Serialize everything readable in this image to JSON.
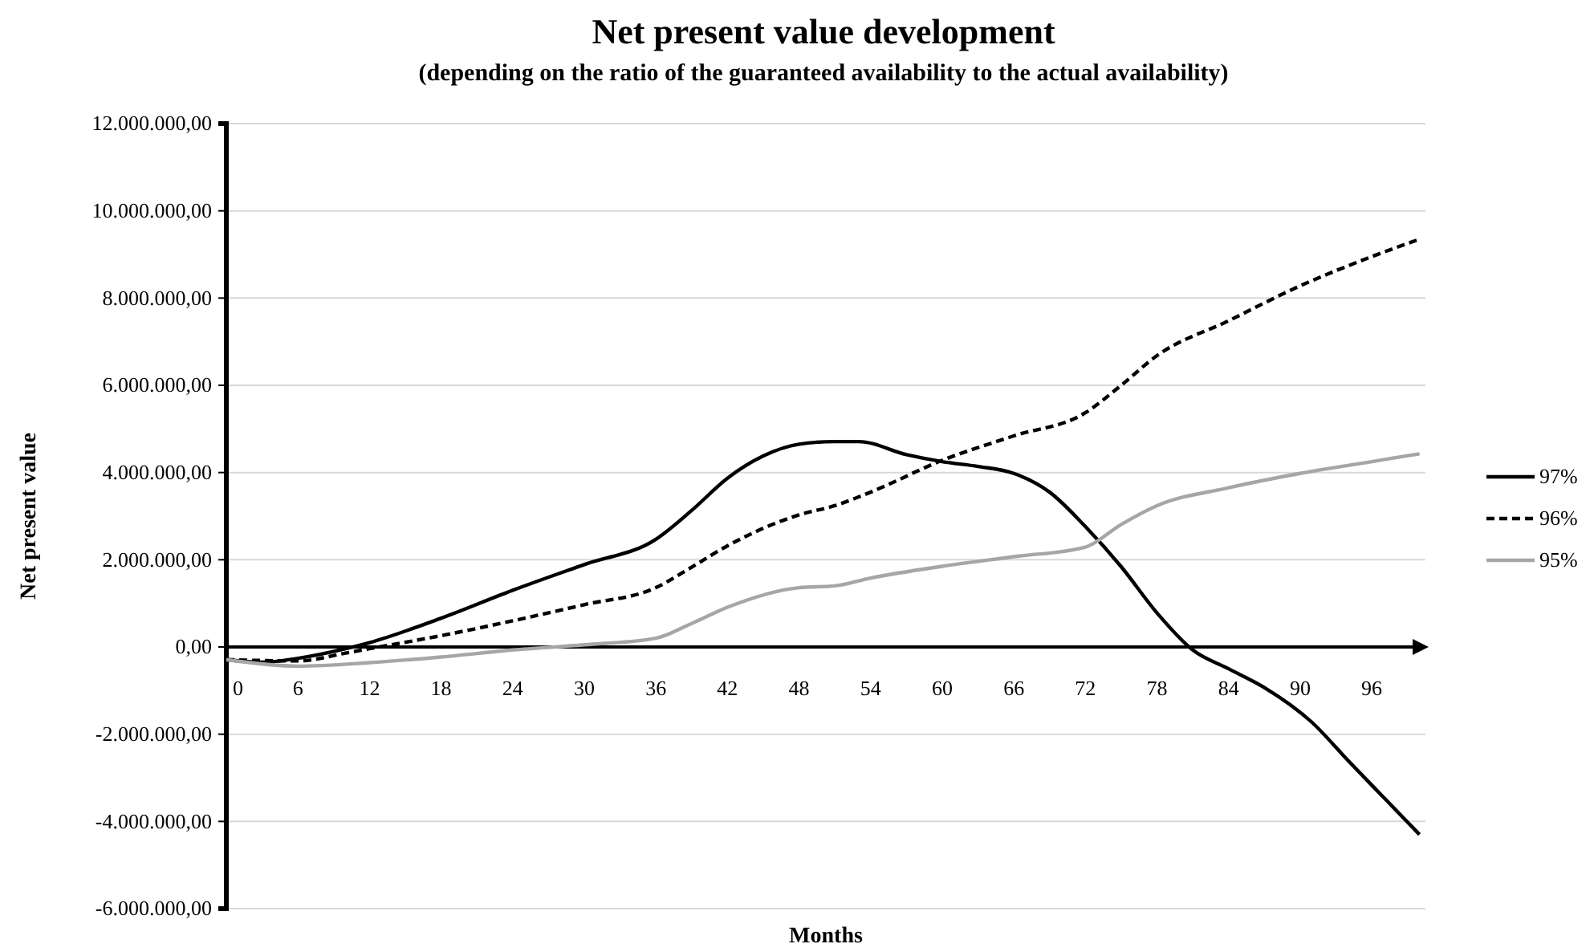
{
  "chart_data": {
    "type": "line",
    "title": "Net present value development",
    "subtitle": "(depending on the ratio of the guaranteed availability to the actual availability)",
    "xlabel": "Months",
    "ylabel": "Net present value",
    "xlim": [
      0,
      100.5
    ],
    "xticks": [
      0,
      6,
      12,
      18,
      24,
      30,
      36,
      42,
      48,
      54,
      60,
      66,
      72,
      78,
      84,
      90,
      96
    ],
    "ylim": [
      -6000000,
      12000000
    ],
    "yticks": [
      {
        "value": -6000000,
        "label": "-6.000.000,00"
      },
      {
        "value": -4000000,
        "label": "-4.000.000,00"
      },
      {
        "value": -2000000,
        "label": "-2.000.000,00"
      },
      {
        "value": 0,
        "label": "0,00"
      },
      {
        "value": 2000000,
        "label": "2.000.000,00"
      },
      {
        "value": 4000000,
        "label": "4.000.000,00"
      },
      {
        "value": 6000000,
        "label": "6.000.000,00"
      },
      {
        "value": 8000000,
        "label": "8.000.000,00"
      },
      {
        "value": 10000000,
        "label": "10.000.000,00"
      },
      {
        "value": 12000000,
        "label": "12.000.000,00"
      }
    ],
    "grid": "y",
    "legend": "right",
    "marker": "none",
    "series": [
      {
        "name": "97%",
        "color": "#000000",
        "line_style": "solid",
        "x": [
          0,
          3,
          6,
          10,
          12,
          18,
          24,
          30,
          36,
          39,
          42,
          45,
          48,
          51,
          53,
          57,
          60,
          63,
          66,
          69,
          72,
          75,
          78,
          81,
          84,
          87,
          91,
          94,
          97,
          100
        ],
        "values": [
          -290000,
          -350000,
          -260000,
          -40000,
          100000,
          660000,
          1300000,
          1890000,
          2470000,
          3130000,
          3870000,
          4380000,
          4650000,
          4710000,
          4710000,
          4410000,
          4250000,
          4140000,
          3980000,
          3550000,
          2760000,
          1840000,
          780000,
          -70000,
          -500000,
          -930000,
          -1730000,
          -2600000,
          -3450000,
          -4300000
        ]
      },
      {
        "name": "96%",
        "color": "#000000",
        "line_style": "dashed",
        "x": [
          0,
          6,
          10,
          12,
          18,
          24,
          30,
          36,
          39,
          42,
          48,
          51,
          54,
          60,
          66,
          72,
          75,
          78,
          84,
          90,
          96,
          100
        ],
        "values": [
          -290000,
          -320000,
          -140000,
          -40000,
          260000,
          600000,
          970000,
          1360000,
          1830000,
          2320000,
          3030000,
          3240000,
          3550000,
          4280000,
          4840000,
          5370000,
          6000000,
          6680000,
          7480000,
          8280000,
          8950000,
          9350000
        ]
      },
      {
        "name": "95%",
        "color": "#a6a6a6",
        "line_style": "solid",
        "x": [
          0,
          6,
          12,
          18,
          24,
          30,
          36,
          39,
          42,
          48,
          51,
          54,
          60,
          66,
          72,
          75,
          78,
          84,
          90,
          96,
          100
        ],
        "values": [
          -290000,
          -440000,
          -360000,
          -230000,
          -70000,
          50000,
          200000,
          540000,
          910000,
          1360000,
          1400000,
          1580000,
          1850000,
          2070000,
          2290000,
          2810000,
          3240000,
          3650000,
          3980000,
          4250000,
          4430000
        ]
      }
    ]
  }
}
